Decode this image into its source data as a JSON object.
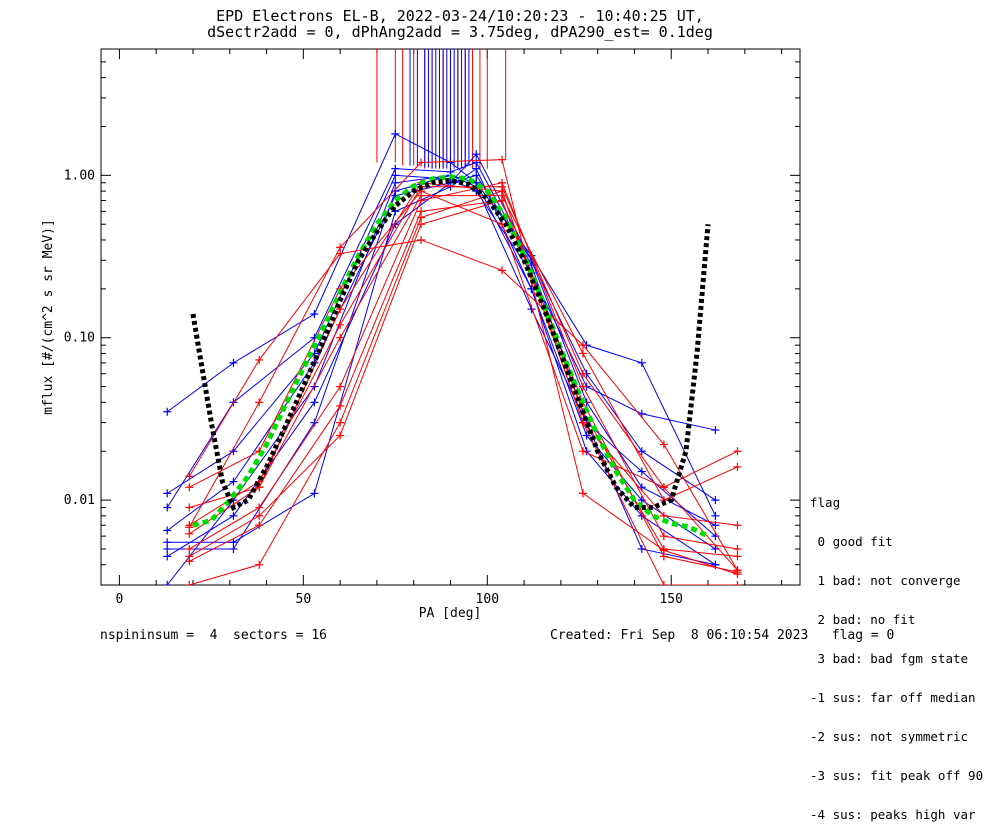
{
  "chart_data": {
    "type": "line",
    "title": "EPD Electrons EL-B, 2022-03-24/10:20:23 - 10:40:25 UT,",
    "subtitle": "dSectr2add = 0, dPhAng2add = 3.75deg, dPA290_est=   0.1deg",
    "xlabel": "PA [deg]",
    "ylabel": "mflux [#/(cm^2 s sr MeV)]",
    "xlim": [
      -5,
      185
    ],
    "ylim": [
      0.003,
      6.0
    ],
    "yscale": "log",
    "x_ticks": [
      0,
      50,
      100,
      150
    ],
    "y_ticks": [
      {
        "value": 0.01,
        "label": "0.01"
      },
      {
        "value": 0.1,
        "label": "0.10"
      },
      {
        "value": 1.0,
        "label": "1.00"
      }
    ],
    "colors": {
      "red": "#ff0000",
      "blue": "#0000ff",
      "fit": "#000000",
      "median": "#00dd00"
    },
    "series": [
      {
        "color": "blue",
        "x": [
          13,
          31,
          53,
          75,
          90,
          97,
          112,
          127,
          142,
          162
        ],
        "y": [
          0.035,
          0.07,
          0.14,
          1.8,
          1.2,
          0.9,
          0.32,
          0.09,
          0.07,
          0.008
        ]
      },
      {
        "color": "blue",
        "x": [
          13,
          31,
          53,
          75,
          90,
          97,
          112,
          127,
          142,
          162
        ],
        "y": [
          0.009,
          0.04,
          0.1,
          1.1,
          1.05,
          1.2,
          0.28,
          0.03,
          0.015,
          0.006
        ]
      },
      {
        "color": "blue",
        "x": [
          13,
          31,
          53,
          75,
          90,
          97,
          112,
          127,
          142,
          162
        ],
        "y": [
          0.005,
          0.005,
          0.03,
          0.8,
          1.0,
          0.9,
          0.2,
          0.025,
          0.01,
          0.005
        ]
      },
      {
        "color": "blue",
        "x": [
          13,
          31,
          53,
          75,
          90,
          97,
          112,
          127,
          142,
          162
        ],
        "y": [
          0.0055,
          0.0055,
          0.011,
          0.6,
          0.85,
          1.1,
          0.2,
          0.02,
          0.008,
          0.004
        ]
      },
      {
        "color": "blue",
        "x": [
          13,
          31,
          53,
          75,
          90,
          97,
          112,
          127,
          142,
          162
        ],
        "y": [
          0.0045,
          0.008,
          0.04,
          0.5,
          0.9,
          1.35,
          0.3,
          0.04,
          0.012,
          0.007
        ]
      },
      {
        "color": "blue",
        "x": [
          13,
          31,
          53,
          75,
          90,
          97,
          112,
          127,
          142,
          162
        ],
        "y": [
          0.011,
          0.02,
          0.08,
          1.0,
          0.95,
          0.8,
          0.25,
          0.05,
          0.034,
          0.027
        ]
      },
      {
        "color": "blue",
        "x": [
          13,
          31,
          53,
          75,
          90,
          97,
          112,
          127,
          142,
          162
        ],
        "y": [
          0.003,
          0.01,
          0.05,
          0.9,
          1.0,
          0.85,
          0.15,
          0.03,
          0.005,
          0.004
        ]
      },
      {
        "color": "blue",
        "x": [
          13,
          31,
          53,
          75,
          90,
          97,
          112,
          127,
          142,
          162
        ],
        "y": [
          0.0065,
          0.013,
          0.07,
          0.75,
          0.9,
          1.0,
          0.3,
          0.06,
          0.02,
          0.01
        ]
      },
      {
        "color": "red",
        "x": [
          19,
          38,
          60,
          82,
          104,
          126,
          148,
          168
        ],
        "y": [
          0.014,
          0.073,
          0.33,
          0.4,
          0.26,
          0.09,
          0.022,
          0.0037
        ]
      },
      {
        "color": "red",
        "x": [
          19,
          38,
          60,
          82,
          104,
          126,
          148,
          168
        ],
        "y": [
          0.0068,
          0.04,
          0.36,
          1.2,
          1.25,
          0.011,
          0.0049,
          0.0035
        ]
      },
      {
        "color": "red",
        "x": [
          19,
          38,
          60,
          82,
          104,
          126,
          148,
          168
        ],
        "y": [
          0.012,
          0.02,
          0.2,
          0.8,
          0.5,
          0.02,
          0.012,
          0.0037
        ]
      },
      {
        "color": "red",
        "x": [
          19,
          38,
          60,
          82,
          104,
          126,
          148,
          168
        ],
        "y": [
          0.009,
          0.012,
          0.15,
          0.9,
          0.8,
          0.03,
          0.008,
          0.007
        ]
      },
      {
        "color": "red",
        "x": [
          19,
          38,
          60,
          82,
          104,
          126,
          148,
          168
        ],
        "y": [
          0.005,
          0.009,
          0.05,
          0.7,
          0.9,
          0.05,
          0.006,
          0.005
        ]
      },
      {
        "color": "red",
        "x": [
          19,
          38,
          60,
          82,
          104,
          126,
          148,
          168
        ],
        "y": [
          0.0042,
          0.007,
          0.038,
          0.6,
          0.7,
          0.04,
          0.0045,
          0.0036
        ]
      },
      {
        "color": "red",
        "x": [
          19,
          38,
          60,
          82,
          104,
          126,
          148,
          168
        ],
        "y": [
          0.007,
          0.013,
          0.12,
          0.85,
          0.85,
          0.06,
          0.012,
          0.02
        ]
      },
      {
        "color": "red",
        "x": [
          19,
          38,
          60,
          82,
          104,
          126,
          148,
          168
        ],
        "y": [
          0.0062,
          0.012,
          0.1,
          0.75,
          0.75,
          0.08,
          0.01,
          0.016
        ]
      },
      {
        "color": "red",
        "x": [
          19,
          38,
          60,
          82,
          104,
          126,
          148,
          168
        ],
        "y": [
          0.0045,
          0.008,
          0.025,
          0.5,
          0.7,
          0.035,
          0.005,
          0.0045
        ]
      },
      {
        "color": "red",
        "x": [
          19,
          38,
          60,
          82,
          104,
          126,
          148,
          168
        ],
        "y": [
          0.003,
          0.004,
          0.03,
          0.55,
          0.8,
          0.03,
          0.003,
          0.003
        ]
      }
    ],
    "fit_curve": {
      "color": "fit",
      "x": [
        20,
        22,
        25,
        28,
        31,
        35,
        40,
        45,
        50,
        55,
        60,
        65,
        70,
        75,
        80,
        85,
        90,
        95,
        100,
        105,
        110,
        115,
        120,
        125,
        130,
        135,
        140,
        145,
        150,
        154,
        157,
        160
      ],
      "y": [
        0.14,
        0.075,
        0.03,
        0.013,
        0.009,
        0.01,
        0.016,
        0.028,
        0.05,
        0.09,
        0.17,
        0.3,
        0.45,
        0.65,
        0.8,
        0.9,
        0.93,
        0.88,
        0.72,
        0.5,
        0.3,
        0.16,
        0.08,
        0.04,
        0.02,
        0.012,
        0.009,
        0.009,
        0.01,
        0.02,
        0.08,
        0.5
      ]
    },
    "median_curve": {
      "color": "median",
      "x": [
        20,
        25,
        30,
        35,
        40,
        45,
        50,
        55,
        60,
        65,
        70,
        75,
        80,
        85,
        90,
        95,
        100,
        105,
        110,
        115,
        120,
        125,
        130,
        135,
        140,
        145,
        150,
        155,
        160
      ],
      "y": [
        0.007,
        0.0075,
        0.01,
        0.014,
        0.022,
        0.038,
        0.065,
        0.11,
        0.19,
        0.32,
        0.5,
        0.7,
        0.86,
        0.95,
        0.98,
        0.95,
        0.8,
        0.55,
        0.32,
        0.17,
        0.085,
        0.045,
        0.025,
        0.015,
        0.01,
        0.008,
        0.0072,
        0.0068,
        0.006
      ]
    },
    "error_bars": [
      {
        "color": "red",
        "x": [
          70,
          75,
          77,
          80,
          83,
          85,
          88,
          90,
          92,
          94,
          96,
          98,
          100,
          105
        ],
        "y_low": [
          1.2,
          1.2,
          1.15,
          1.15,
          1.1,
          1.1,
          1.1,
          1.1,
          1.1,
          1.1,
          1.1,
          1.1,
          1.1,
          1.25
        ]
      },
      {
        "color": "blue",
        "x": [
          79,
          81,
          83,
          84,
          85,
          86,
          87,
          88,
          89,
          90,
          91,
          92,
          93,
          94,
          95
        ],
        "y_low": [
          1.15,
          1.15,
          1.12,
          1.12,
          1.1,
          1.1,
          1.1,
          1.1,
          1.1,
          1.1,
          1.1,
          1.1,
          1.1,
          1.12,
          1.15
        ]
      }
    ],
    "legend_position": "right-bottom-outside"
  },
  "flag_legend": {
    "title": "flag",
    "items": [
      " 0 good fit",
      " 1 bad: not converge",
      " 2 bad: no fit",
      " 3 bad: bad fgm state",
      "-1 sus: far off median",
      "-2 sus: not symmetric",
      "-3 sus: fit peak off 90",
      "-4 sus: peaks high var"
    ]
  },
  "footer": {
    "left": "nspininsum =  4  sectors = 16",
    "right": "Created: Fri Sep  8 06:10:54 2023   flag = 0"
  }
}
